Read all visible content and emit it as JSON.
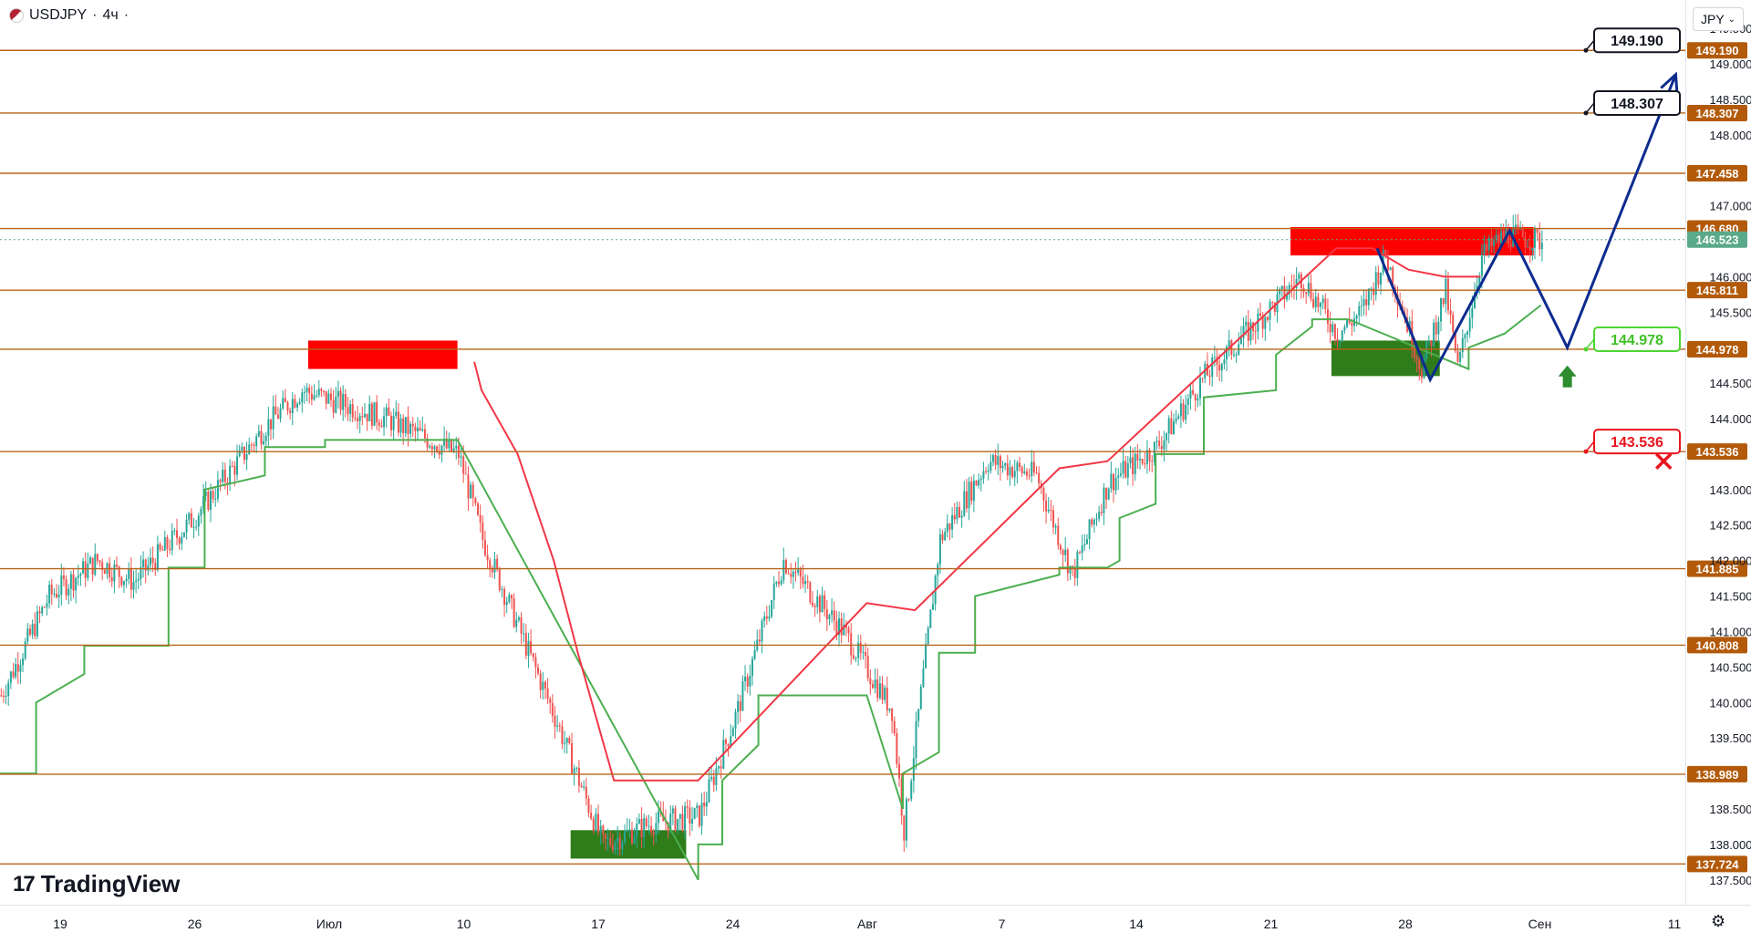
{
  "header": {
    "symbol": "USDJPY",
    "interval": "4ч"
  },
  "currency_selector": {
    "value": "JPY"
  },
  "brand": {
    "name": "TradingView"
  },
  "colors": {
    "level_line": "#b8651b",
    "level_label_bg": "#b25a0a",
    "bear_zone": "#ff0000",
    "bull_zone": "#2e7d1a",
    "trail_up": "#4caf50",
    "trail_down": "#f23645",
    "forecast": "#0d2b8f",
    "up": "#26a69a",
    "down": "#ef5350",
    "current_price_bg": "#5aa98a"
  },
  "chart_data": {
    "type": "candlestick",
    "symbol": "USDJPY",
    "timeframe": "4h",
    "y_axis_ticks": [
      "149.500",
      "149.000",
      "148.500",
      "148.000",
      "147.000",
      "146.000",
      "145.500",
      "144.500",
      "144.000",
      "143.000",
      "142.500",
      "142.000",
      "141.500",
      "141.000",
      "140.500",
      "140.000",
      "139.500",
      "138.500",
      "138.000",
      "137.500"
    ],
    "x_axis_ticks": [
      "19",
      "26",
      "Июл",
      "10",
      "17",
      "24",
      "Авг",
      "7",
      "14",
      "21",
      "28",
      "Сен",
      "11"
    ],
    "levels": [
      "149.190",
      "148.307",
      "147.458",
      "146.680",
      "145.811",
      "144.978",
      "143.536",
      "141.885",
      "140.808",
      "138.989",
      "137.724"
    ],
    "current_price": "146.523",
    "price_path_anchors": [
      [
        0,
        140.1
      ],
      [
        20,
        141.5
      ],
      [
        40,
        142.0
      ],
      [
        55,
        141.7
      ],
      [
        80,
        142.6
      ],
      [
        110,
        143.9
      ],
      [
        125,
        144.4
      ],
      [
        160,
        144.0
      ],
      [
        190,
        143.5
      ],
      [
        200,
        142.3
      ],
      [
        230,
        139.8
      ],
      [
        250,
        138.0
      ],
      [
        270,
        138.3
      ],
      [
        290,
        138.4
      ],
      [
        305,
        139.8
      ],
      [
        325,
        142.0
      ],
      [
        350,
        141.0
      ],
      [
        370,
        139.9
      ],
      [
        375,
        138.2
      ],
      [
        390,
        142.3
      ],
      [
        410,
        143.4
      ],
      [
        430,
        143.2
      ],
      [
        445,
        141.8
      ],
      [
        460,
        143.1
      ],
      [
        480,
        143.6
      ],
      [
        500,
        144.6
      ],
      [
        520,
        145.3
      ],
      [
        540,
        146.0
      ],
      [
        555,
        145.2
      ],
      [
        565,
        145.5
      ],
      [
        575,
        146.3
      ],
      [
        590,
        144.7
      ],
      [
        600,
        145.8
      ],
      [
        605,
        144.7
      ],
      [
        615,
        146.3
      ],
      [
        625,
        146.6
      ],
      [
        640,
        146.5
      ]
    ],
    "trail_stop_up": [
      [
        0,
        139.0
      ],
      [
        15,
        139.0
      ],
      [
        15,
        140.0
      ],
      [
        35,
        140.4
      ],
      [
        35,
        140.8
      ],
      [
        70,
        140.8
      ],
      [
        70,
        141.9
      ],
      [
        85,
        141.9
      ],
      [
        85,
        143.0
      ],
      [
        110,
        143.2
      ],
      [
        110,
        143.6
      ],
      [
        135,
        143.6
      ],
      [
        135,
        143.7
      ],
      [
        190,
        143.7
      ],
      [
        290,
        137.5
      ],
      [
        290,
        138.0
      ],
      [
        300,
        138.0
      ],
      [
        300,
        138.9
      ],
      [
        315,
        139.4
      ],
      [
        315,
        140.1
      ],
      [
        360,
        140.1
      ],
      [
        375,
        138.5
      ],
      [
        375,
        139.0
      ],
      [
        390,
        139.3
      ],
      [
        390,
        140.7
      ],
      [
        405,
        140.7
      ],
      [
        405,
        141.5
      ],
      [
        440,
        141.8
      ],
      [
        440,
        141.9
      ],
      [
        460,
        141.9
      ],
      [
        465,
        142.0
      ],
      [
        465,
        142.6
      ],
      [
        480,
        142.8
      ],
      [
        480,
        143.5
      ],
      [
        500,
        143.5
      ],
      [
        500,
        144.3
      ],
      [
        530,
        144.4
      ],
      [
        530,
        144.9
      ],
      [
        545,
        145.3
      ],
      [
        545,
        145.4
      ],
      [
        560,
        145.4
      ],
      [
        610,
        144.7
      ],
      [
        610,
        145.0
      ],
      [
        625,
        145.2
      ],
      [
        640,
        145.6
      ]
    ],
    "trail_stop_down": [
      [
        197,
        144.8
      ],
      [
        200,
        144.4
      ],
      [
        215,
        143.5
      ],
      [
        220,
        143.0
      ],
      [
        230,
        142.0
      ],
      [
        240,
        140.7
      ],
      [
        250,
        139.5
      ],
      [
        255,
        138.9
      ],
      [
        290,
        138.9
      ],
      [
        360,
        141.4
      ],
      [
        380,
        141.3
      ],
      [
        440,
        143.3
      ],
      [
        460,
        143.4
      ],
      [
        555,
        146.4
      ],
      [
        570,
        146.4
      ],
      [
        585,
        146.1
      ],
      [
        600,
        146.0
      ],
      [
        615,
        146.0
      ]
    ],
    "resistance_zones": [
      {
        "x_from": 128,
        "x_to": 190,
        "y_top": 145.1,
        "y_bottom": 144.7
      },
      {
        "x_from": 536,
        "x_to": 637,
        "y_top": 146.7,
        "y_bottom": 146.3
      }
    ],
    "support_zones": [
      {
        "x_from": 237,
        "x_to": 285,
        "y_top": 138.2,
        "y_bottom": 137.8
      },
      {
        "x_from": 553,
        "x_to": 598,
        "y_top": 145.1,
        "y_bottom": 144.6
      }
    ],
    "forecast_path": [
      [
        572,
        146.4
      ],
      [
        594,
        144.55
      ],
      [
        627,
        146.65
      ],
      [
        651,
        145.0
      ],
      [
        696,
        148.85
      ]
    ],
    "target_levels": [
      {
        "value": "149.190",
        "style": "dark"
      },
      {
        "value": "148.307",
        "style": "dark"
      },
      {
        "value": "144.978",
        "style": "green"
      },
      {
        "value": "143.536",
        "style": "red"
      }
    ],
    "entry_marker": {
      "x": 651,
      "y": 144.75,
      "direction": "up"
    },
    "stop_marker": {
      "x": 691,
      "y": 143.4
    }
  }
}
